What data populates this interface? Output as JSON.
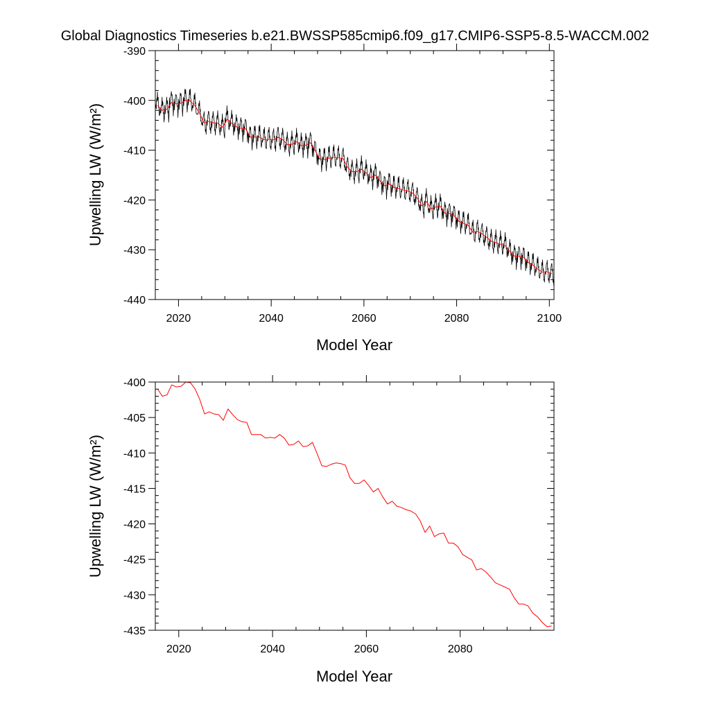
{
  "figure": {
    "title": "Global Diagnostics Timeseries b.e21.BWSSP585cmip6.f09_g17.CMIP6-SSP5-8.5-WACCM.002"
  },
  "colors": {
    "monthly_series": "#000000",
    "annual_series": "#ff0000",
    "axes": "#000000"
  },
  "chart_data": [
    {
      "type": "line",
      "xlabel": "Model Year",
      "ylabel": "Upwelling LW (W/m²)",
      "xlim": [
        2015,
        2101
      ],
      "ylim": [
        -440,
        -390
      ],
      "xticks": [
        2020,
        2040,
        2060,
        2080,
        2100
      ],
      "yticks": [
        -390,
        -400,
        -410,
        -420,
        -430,
        -440
      ],
      "x_minor_step": 5,
      "y_minor_step": 2,
      "grid": false,
      "monthly_amplitude": 2.5,
      "series": [
        {
          "role": "monthly",
          "color": "#000000",
          "x": [
            2015.5,
            2016.5,
            2017.5,
            2018.5,
            2019.5,
            2020.5,
            2021.5,
            2022.5,
            2023.5,
            2024.5,
            2025.5,
            2026.5,
            2027.5,
            2028.5,
            2029.5,
            2030.5,
            2031.5,
            2032.5,
            2033.5,
            2034.5,
            2035.5,
            2036.5,
            2037.5,
            2038.5,
            2039.5,
            2040.5,
            2041.5,
            2042.5,
            2043.5,
            2044.5,
            2045.5,
            2046.5,
            2047.5,
            2048.5,
            2049.5,
            2050.5,
            2051.5,
            2052.5,
            2053.5,
            2054.5,
            2055.5,
            2056.5,
            2057.5,
            2058.5,
            2059.5,
            2060.5,
            2061.5,
            2062.5,
            2063.5,
            2064.5,
            2065.5,
            2066.5,
            2067.5,
            2068.5,
            2069.5,
            2070.5,
            2071.5,
            2072.5,
            2073.5,
            2074.5,
            2075.5,
            2076.5,
            2077.5,
            2078.5,
            2079.5,
            2080.5,
            2081.5,
            2082.5,
            2083.5,
            2084.5,
            2085.5,
            2086.5,
            2087.5,
            2088.5,
            2089.5,
            2090.5,
            2091.5,
            2092.5,
            2093.5,
            2094.5,
            2095.5,
            2096.5,
            2097.5,
            2098.5,
            2099.5,
            2100.5
          ],
          "y": [
            -401.0,
            -402.0,
            -401.8,
            -400.4,
            -400.7,
            -400.6,
            -400.0,
            -400.1,
            -401.0,
            -402.5,
            -404.5,
            -404.2,
            -404.5,
            -404.6,
            -405.4,
            -403.8,
            -404.6,
            -405.3,
            -405.6,
            -405.7,
            -407.4,
            -407.4,
            -407.4,
            -407.9,
            -407.8,
            -407.9,
            -407.4,
            -407.9,
            -408.9,
            -408.8,
            -408.3,
            -409.1,
            -409.0,
            -408.5,
            -410.1,
            -411.8,
            -411.9,
            -411.6,
            -411.4,
            -411.5,
            -411.7,
            -413.5,
            -414.3,
            -414.3,
            -413.8,
            -414.6,
            -415.5,
            -415.0,
            -416.2,
            -417.2,
            -416.8,
            -417.5,
            -417.7,
            -418.0,
            -418.2,
            -418.6,
            -419.6,
            -421.2,
            -420.3,
            -421.8,
            -421.4,
            -421.3,
            -422.7,
            -422.7,
            -423.2,
            -424.3,
            -424.7,
            -425.1,
            -426.5,
            -426.3,
            -426.8,
            -427.5,
            -428.3,
            -428.6,
            -428.9,
            -429.2,
            -430.4,
            -431.3,
            -431.3,
            -431.6,
            -432.6,
            -433.1,
            -433.9,
            -434.5,
            -434.4,
            -434.8
          ]
        },
        {
          "role": "annual",
          "color": "#ff0000",
          "x": [
            2015.5,
            2016.5,
            2017.5,
            2018.5,
            2019.5,
            2020.5,
            2021.5,
            2022.5,
            2023.5,
            2024.5,
            2025.5,
            2026.5,
            2027.5,
            2028.5,
            2029.5,
            2030.5,
            2031.5,
            2032.5,
            2033.5,
            2034.5,
            2035.5,
            2036.5,
            2037.5,
            2038.5,
            2039.5,
            2040.5,
            2041.5,
            2042.5,
            2043.5,
            2044.5,
            2045.5,
            2046.5,
            2047.5,
            2048.5,
            2049.5,
            2050.5,
            2051.5,
            2052.5,
            2053.5,
            2054.5,
            2055.5,
            2056.5,
            2057.5,
            2058.5,
            2059.5,
            2060.5,
            2061.5,
            2062.5,
            2063.5,
            2064.5,
            2065.5,
            2066.5,
            2067.5,
            2068.5,
            2069.5,
            2070.5,
            2071.5,
            2072.5,
            2073.5,
            2074.5,
            2075.5,
            2076.5,
            2077.5,
            2078.5,
            2079.5,
            2080.5,
            2081.5,
            2082.5,
            2083.5,
            2084.5,
            2085.5,
            2086.5,
            2087.5,
            2088.5,
            2089.5,
            2090.5,
            2091.5,
            2092.5,
            2093.5,
            2094.5,
            2095.5,
            2096.5,
            2097.5,
            2098.5,
            2099.5,
            2100.5
          ],
          "y": [
            -401.0,
            -402.0,
            -401.8,
            -400.4,
            -400.7,
            -400.6,
            -400.0,
            -400.1,
            -401.0,
            -402.5,
            -404.5,
            -404.2,
            -404.5,
            -404.6,
            -405.4,
            -403.8,
            -404.6,
            -405.3,
            -405.6,
            -405.7,
            -407.4,
            -407.4,
            -407.4,
            -407.9,
            -407.8,
            -407.9,
            -407.4,
            -407.9,
            -408.9,
            -408.8,
            -408.3,
            -409.1,
            -409.0,
            -408.5,
            -410.1,
            -411.8,
            -411.9,
            -411.6,
            -411.4,
            -411.5,
            -411.7,
            -413.5,
            -414.3,
            -414.3,
            -413.8,
            -414.6,
            -415.5,
            -415.0,
            -416.2,
            -417.2,
            -416.8,
            -417.5,
            -417.7,
            -418.0,
            -418.2,
            -418.6,
            -419.6,
            -421.2,
            -420.3,
            -421.8,
            -421.4,
            -421.3,
            -422.7,
            -422.7,
            -423.2,
            -424.3,
            -424.7,
            -425.1,
            -426.5,
            -426.3,
            -426.8,
            -427.5,
            -428.3,
            -428.6,
            -428.9,
            -429.2,
            -430.4,
            -431.3,
            -431.3,
            -431.6,
            -432.6,
            -433.1,
            -433.9,
            -434.5,
            -434.4,
            -434.8
          ]
        }
      ]
    },
    {
      "type": "line",
      "xlabel": "Model Year",
      "ylabel": "Upwelling LW (W/m²)",
      "xlim": [
        2015,
        2100
      ],
      "ylim": [
        -435,
        -400
      ],
      "xticks": [
        2020,
        2040,
        2060,
        2080
      ],
      "yticks": [
        -400,
        -405,
        -410,
        -415,
        -420,
        -425,
        -430,
        -435
      ],
      "x_minor_step": 5,
      "y_minor_step": 1,
      "grid": false,
      "series": [
        {
          "role": "annual",
          "color": "#ff0000",
          "x": [
            2015.5,
            2016.5,
            2017.5,
            2018.5,
            2019.5,
            2020.5,
            2021.5,
            2022.5,
            2023.5,
            2024.5,
            2025.5,
            2026.5,
            2027.5,
            2028.5,
            2029.5,
            2030.5,
            2031.5,
            2032.5,
            2033.5,
            2034.5,
            2035.5,
            2036.5,
            2037.5,
            2038.5,
            2039.5,
            2040.5,
            2041.5,
            2042.5,
            2043.5,
            2044.5,
            2045.5,
            2046.5,
            2047.5,
            2048.5,
            2049.5,
            2050.5,
            2051.5,
            2052.5,
            2053.5,
            2054.5,
            2055.5,
            2056.5,
            2057.5,
            2058.5,
            2059.5,
            2060.5,
            2061.5,
            2062.5,
            2063.5,
            2064.5,
            2065.5,
            2066.5,
            2067.5,
            2068.5,
            2069.5,
            2070.5,
            2071.5,
            2072.5,
            2073.5,
            2074.5,
            2075.5,
            2076.5,
            2077.5,
            2078.5,
            2079.5,
            2080.5,
            2081.5,
            2082.5,
            2083.5,
            2084.5,
            2085.5,
            2086.5,
            2087.5,
            2088.5,
            2089.5,
            2090.5,
            2091.5,
            2092.5,
            2093.5,
            2094.5,
            2095.5,
            2096.5,
            2097.5,
            2098.5,
            2099.5
          ],
          "y": [
            -401.0,
            -402.0,
            -401.8,
            -400.4,
            -400.7,
            -400.6,
            -400.0,
            -400.1,
            -401.0,
            -402.5,
            -404.5,
            -404.2,
            -404.5,
            -404.6,
            -405.4,
            -403.8,
            -404.6,
            -405.3,
            -405.6,
            -405.7,
            -407.4,
            -407.4,
            -407.4,
            -407.9,
            -407.8,
            -407.9,
            -407.4,
            -407.9,
            -408.9,
            -408.8,
            -408.3,
            -409.1,
            -409.0,
            -408.5,
            -410.1,
            -411.8,
            -411.9,
            -411.6,
            -411.4,
            -411.5,
            -411.7,
            -413.5,
            -414.3,
            -414.3,
            -413.8,
            -414.6,
            -415.5,
            -415.0,
            -416.2,
            -417.2,
            -416.8,
            -417.5,
            -417.7,
            -418.0,
            -418.2,
            -418.6,
            -419.6,
            -421.2,
            -420.3,
            -421.8,
            -421.4,
            -421.3,
            -422.7,
            -422.7,
            -423.2,
            -424.3,
            -424.7,
            -425.1,
            -426.5,
            -426.3,
            -426.8,
            -427.5,
            -428.3,
            -428.6,
            -428.9,
            -429.2,
            -430.4,
            -431.3,
            -431.3,
            -431.6,
            -432.6,
            -433.1,
            -433.9,
            -434.5,
            -434.4
          ]
        }
      ]
    }
  ]
}
